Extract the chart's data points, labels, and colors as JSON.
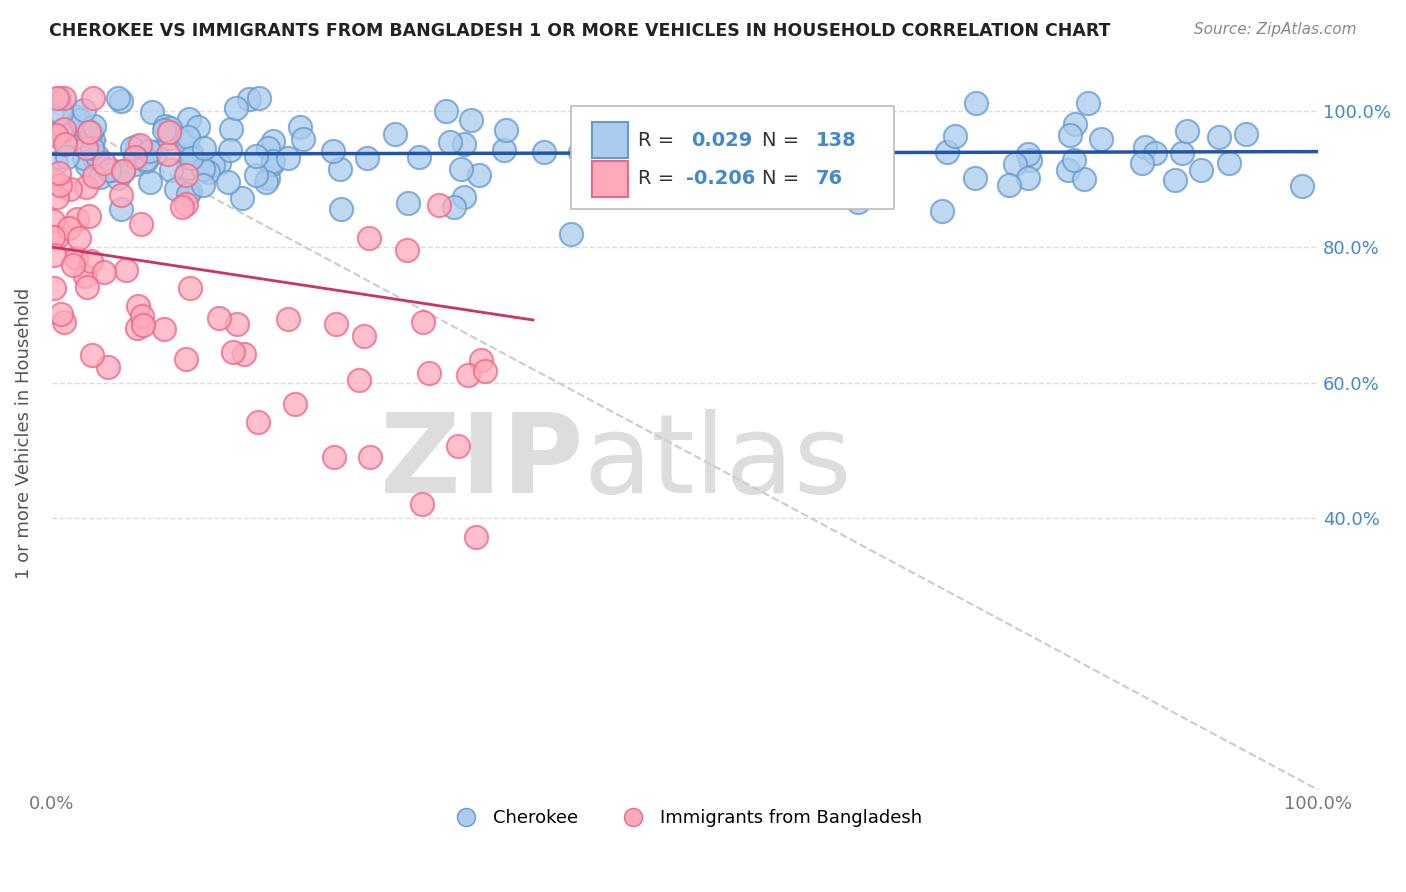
{
  "title": "CHEROKEE VS IMMIGRANTS FROM BANGLADESH 1 OR MORE VEHICLES IN HOUSEHOLD CORRELATION CHART",
  "source": "Source: ZipAtlas.com",
  "ylabel": "1 or more Vehicles in Household",
  "watermark_zip": "ZIP",
  "watermark_atlas": "atlas",
  "blue_color": "#6699CC",
  "blue_fill": "#AACCEE",
  "pink_color": "#EE6688",
  "pink_fill": "#FFAABB",
  "blue_line_color": "#2255AA",
  "pink_line_color": "#CC3366",
  "diag_line_color": "#CCCCCC",
  "grid_color": "#DDDDDD",
  "title_color": "#222222",
  "source_color": "#888888",
  "watermark_color": "#DDDDDD",
  "legend_v1": "0.029",
  "legend_v2": "-0.206",
  "blue_R": 0.029,
  "blue_N": 138,
  "pink_R": -0.206,
  "pink_N": 76,
  "legend_color": "#4488CC",
  "legend_label_color": "#333333",
  "right_tick_color": "#4488CC",
  "bottom_tick_color": "#777777"
}
